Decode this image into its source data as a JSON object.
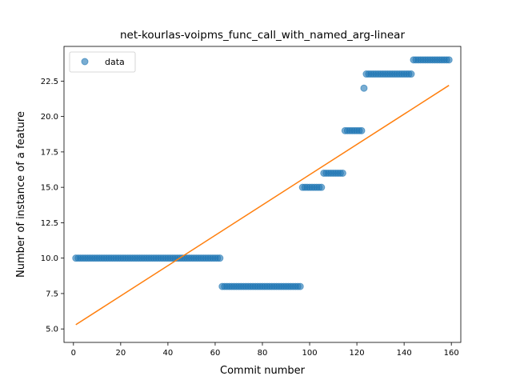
{
  "chart_data": {
    "type": "scatter",
    "title": "net-kourlas-voipms_func_call_with_named_arg-linear",
    "xlabel": "Commit number",
    "ylabel": "Number of instance of a feature",
    "xlim": [
      -4,
      164
    ],
    "ylim": [
      4.05,
      24.95
    ],
    "x_ticks": [
      0,
      20,
      40,
      60,
      80,
      100,
      120,
      140,
      160
    ],
    "y_ticks": [
      5.0,
      7.5,
      10.0,
      12.5,
      15.0,
      17.5,
      20.0,
      22.5
    ],
    "y_tick_labels": [
      "5.0",
      "7.5",
      "10.0",
      "12.5",
      "15.0",
      "17.5",
      "20.0",
      "22.5"
    ],
    "legend": {
      "position": "top-left",
      "entries": [
        "data"
      ]
    },
    "grid": false,
    "series": [
      {
        "name": "data",
        "kind": "scatter",
        "color": "#1f77b4",
        "segments": [
          {
            "x_start": 1,
            "x_end": 62,
            "y": 10
          },
          {
            "x_start": 63,
            "x_end": 96,
            "y": 8
          },
          {
            "x_start": 97,
            "x_end": 105,
            "y": 15
          },
          {
            "x_start": 106,
            "x_end": 114,
            "y": 16
          },
          {
            "x_start": 115,
            "x_end": 122,
            "y": 19
          },
          {
            "x_start": 123,
            "x_end": 123,
            "y": 22
          },
          {
            "x_start": 124,
            "x_end": 143,
            "y": 23
          },
          {
            "x_start": 144,
            "x_end": 159,
            "y": 24
          }
        ]
      },
      {
        "name": "linear fit",
        "kind": "line",
        "color": "#ff7f0e",
        "x": [
          1,
          159
        ],
        "y": [
          5.3,
          22.2
        ]
      }
    ]
  }
}
